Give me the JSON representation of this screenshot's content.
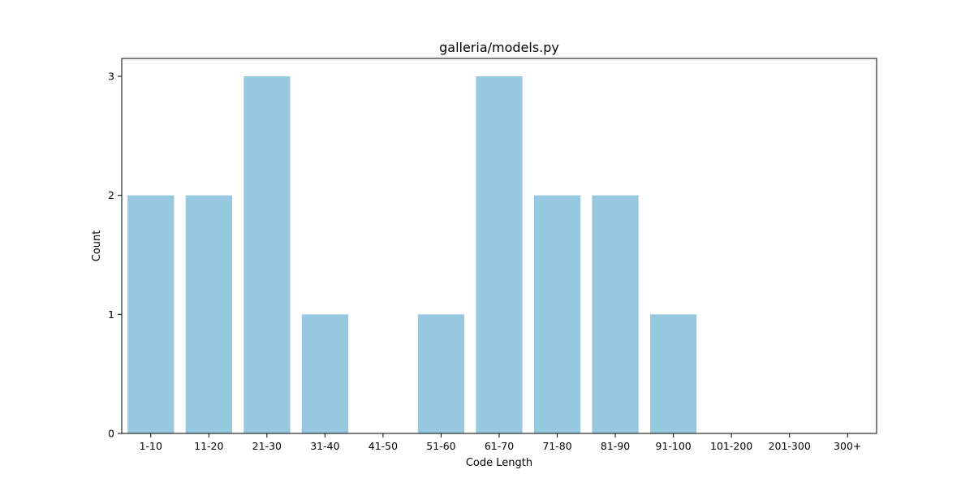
{
  "chart_data": {
    "type": "bar",
    "title": "galleria/models.py",
    "xlabel": "Code Length",
    "ylabel": "Count",
    "categories": [
      "1-10",
      "11-20",
      "21-30",
      "31-40",
      "41-50",
      "51-60",
      "61-70",
      "71-80",
      "81-90",
      "91-100",
      "101-200",
      "201-300",
      "300+"
    ],
    "values": [
      2,
      2,
      3,
      1,
      0,
      1,
      3,
      2,
      2,
      1,
      0,
      0,
      0
    ],
    "ylim": [
      0,
      3.15
    ],
    "yticks": [
      0,
      1,
      2,
      3
    ],
    "grid": false,
    "bar_color": "#96c9df"
  }
}
